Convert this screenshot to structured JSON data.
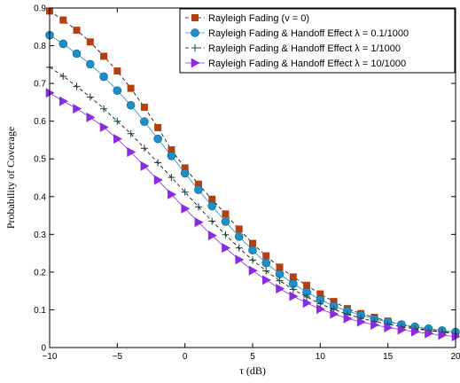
{
  "chart_data": {
    "type": "line",
    "xlabel": "τ (dB)",
    "ylabel": "Probability of Coverage",
    "xlim": [
      -10,
      20
    ],
    "ylim": [
      0,
      0.9
    ],
    "grid": false,
    "legend_position": "top-right",
    "x_ticks": [
      "−10",
      "−5",
      "0",
      "5",
      "10",
      "15",
      "20"
    ],
    "y_ticks": [
      "0",
      "0.1",
      "0.2",
      "0.3",
      "0.4",
      "0.5",
      "0.6",
      "0.7",
      "0.8",
      "0.9"
    ],
    "x": [
      -10,
      -9,
      -8,
      -7,
      -6,
      -5,
      -4,
      -3,
      -2,
      -1,
      0,
      1,
      2,
      3,
      4,
      5,
      6,
      7,
      8,
      9,
      10,
      11,
      12,
      13,
      14,
      15,
      16,
      17,
      18,
      19,
      20
    ],
    "series": [
      {
        "name": "Rayleigh Fading (v = 0)",
        "color": "#b5400f",
        "marker": "square",
        "line": "dashed",
        "values": [
          0.892,
          0.868,
          0.841,
          0.81,
          0.772,
          0.733,
          0.687,
          0.637,
          0.583,
          0.524,
          0.476,
          0.433,
          0.393,
          0.354,
          0.314,
          0.276,
          0.243,
          0.213,
          0.187,
          0.165,
          0.142,
          0.122,
          0.103,
          0.09,
          0.08,
          0.07,
          0.06,
          0.052,
          0.047,
          0.042,
          0.038
        ]
      },
      {
        "name": "Rayleigh Fading & Handoff Effect λ = 0.1/1000",
        "color": "#1f8fc7",
        "marker": "circle",
        "line": "solid",
        "values": [
          0.828,
          0.805,
          0.779,
          0.751,
          0.718,
          0.681,
          0.642,
          0.599,
          0.553,
          0.508,
          0.462,
          0.418,
          0.375,
          0.334,
          0.294,
          0.258,
          0.224,
          0.195,
          0.169,
          0.147,
          0.127,
          0.11,
          0.097,
          0.086,
          0.076,
          0.068,
          0.061,
          0.055,
          0.05,
          0.045,
          0.041
        ]
      },
      {
        "name": "Rayleigh Fading & Handoff Effect λ = 1/1000",
        "color": "#1f4f3c",
        "marker": "plus",
        "line": "dashed",
        "values": [
          0.743,
          0.719,
          0.692,
          0.664,
          0.633,
          0.6,
          0.567,
          0.528,
          0.49,
          0.451,
          0.412,
          0.373,
          0.335,
          0.299,
          0.264,
          0.232,
          0.203,
          0.177,
          0.154,
          0.134,
          0.116,
          0.101,
          0.088,
          0.078,
          0.069,
          0.062,
          0.055,
          0.05,
          0.045,
          0.041,
          0.037
        ]
      },
      {
        "name": "Rayleigh Fading & Handoff Effect λ = 10/1000",
        "color": "#8a2be2",
        "marker": "triangle-right",
        "line": "solid",
        "values": [
          0.675,
          0.653,
          0.633,
          0.61,
          0.584,
          0.553,
          0.518,
          0.481,
          0.444,
          0.406,
          0.368,
          0.332,
          0.297,
          0.264,
          0.233,
          0.204,
          0.179,
          0.156,
          0.136,
          0.118,
          0.102,
          0.089,
          0.077,
          0.068,
          0.06,
          0.053,
          0.047,
          0.042,
          0.037,
          0.033,
          0.029
        ]
      }
    ]
  }
}
